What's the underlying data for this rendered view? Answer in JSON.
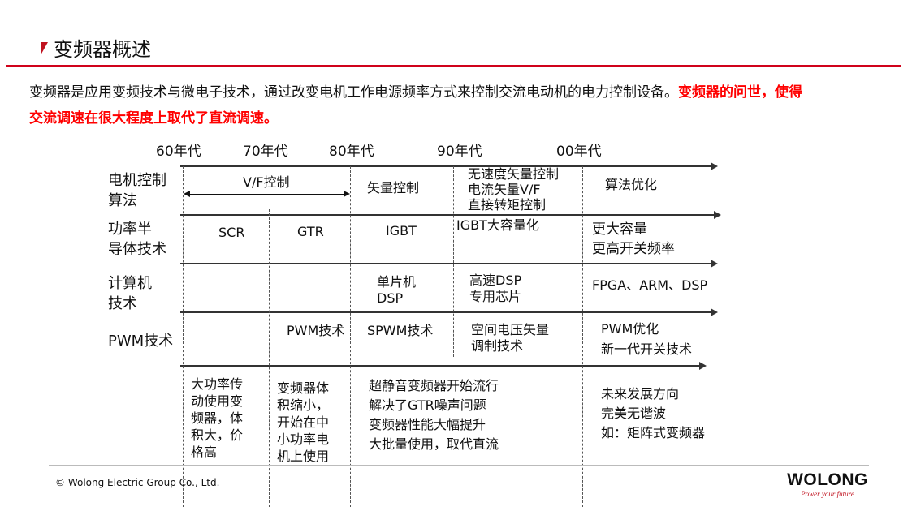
{
  "title": "变频器概述",
  "intro": {
    "normal": "变频器是应用变频技术与微电子技术，通过改变电机工作电源频率方式来控制交流电动机的电力控制设备。",
    "highlight_1": "变频器的问世，使得",
    "highlight_2": "交流调速在很大程度上取代了直流调速。"
  },
  "eras": [
    "60年代",
    "70年代",
    "80年代",
    "90年代",
    "00年代"
  ],
  "rows": {
    "motor": {
      "label_1": "电机控制",
      "label_2": "算法",
      "vf": "V/F控制",
      "vector": "矢量控制",
      "c90_1": "无速度矢量控制",
      "c90_2": "电流矢量V/F",
      "c90_3": "直接转矩控制",
      "c00": "算法优化"
    },
    "power": {
      "label_1": "功率半",
      "label_2": "导体技术",
      "c60": "SCR",
      "c70": "GTR",
      "c80": "IGBT",
      "c90": "IGBT大容量化",
      "c00_1": "更大容量",
      "c00_2": "更高开关频率"
    },
    "computer": {
      "label_1": "计算机",
      "label_2": "技术",
      "c80_1": "单片机",
      "c80_2": "DSP",
      "c90_1": "高速DSP",
      "c90_2": "专用芯片",
      "c00": "FPGA、ARM、DSP"
    },
    "pwm": {
      "label": "PWM技术",
      "c70": "PWM技术",
      "c80": "SPWM技术",
      "c90_1": "空间电压矢量",
      "c90_2": "调制技术",
      "c00_1": "PWM优化",
      "c00_2": "新一代开关技术"
    }
  },
  "notes": {
    "c60": [
      "大功率传",
      "动使用变",
      "频器，体",
      "积大，价",
      "格高"
    ],
    "c70": [
      "变频器体",
      "积缩小，",
      "开始在中",
      "小功率电",
      "机上使用"
    ],
    "c80": [
      "超静音变频器开始流行",
      "解决了GTR噪声问题",
      "变频器性能大幅提升",
      "大批量使用，取代直流"
    ],
    "c00": [
      "未来发展方向",
      "完美无谐波",
      "如：矩阵式变频器"
    ]
  },
  "footer": {
    "copyright": "© Wolong Electric Group Co., Ltd.",
    "logo": "WOLONG",
    "slogan": "Power your future"
  },
  "colors": {
    "accent": "#d0021b",
    "highlight": "#ff0000"
  }
}
